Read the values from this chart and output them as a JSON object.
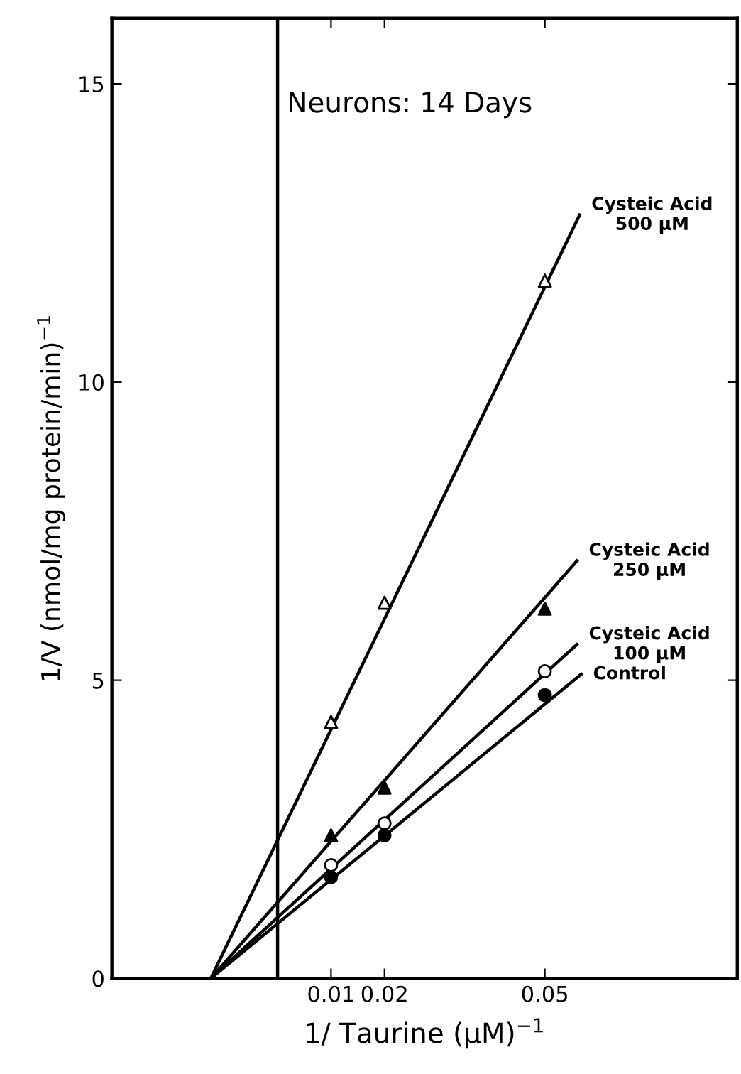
{
  "chart_data": {
    "type": "scatter",
    "title": "Neurons: 14 Days",
    "xlabel": "1/ Taurine (μM)$^{−1}$",
    "ylabel": "1/V (nmol/mg protein/min)$^{−1}$",
    "xlim": [
      -0.031,
      0.086
    ],
    "ylim": [
      0,
      16.1
    ],
    "xticks": [
      0.01,
      0.02,
      0.05
    ],
    "yticks": [
      0,
      5,
      10,
      15
    ],
    "grid": false,
    "legend": false,
    "ref_lines": [
      {
        "axis": "x",
        "value": 0,
        "color": "#000000"
      }
    ],
    "series": [
      {
        "type": "line",
        "x": [
          -0.0125,
          0.0565
        ],
        "values": [
          0,
          12.8
        ],
        "color": "#000000",
        "marker": "none"
      },
      {
        "type": "line",
        "x": [
          -0.0125,
          0.056
        ],
        "values": [
          0,
          7.0
        ],
        "color": "#000000",
        "marker": "none"
      },
      {
        "type": "line",
        "x": [
          -0.0125,
          0.056
        ],
        "values": [
          0,
          5.6
        ],
        "color": "#000000",
        "marker": "none"
      },
      {
        "type": "line",
        "x": [
          -0.0125,
          0.0568
        ],
        "values": [
          0,
          5.1
        ],
        "color": "#000000",
        "marker": "none"
      },
      {
        "x": [
          0.01,
          0.02,
          0.05
        ],
        "values": [
          4.3,
          6.3,
          11.7
        ],
        "color": "#ffffff",
        "marker": "triangle"
      },
      {
        "x": [
          0.01,
          0.02,
          0.05
        ],
        "values": [
          2.4,
          3.2,
          6.2
        ],
        "color": "#000000",
        "marker": "triangle"
      },
      {
        "x": [
          0.01,
          0.02,
          0.05
        ],
        "values": [
          1.9,
          2.6,
          5.15
        ],
        "color": "#ffffff",
        "marker": "circle"
      },
      {
        "x": [
          0.01,
          0.02,
          0.05
        ],
        "values": [
          1.7,
          2.4,
          4.75
        ],
        "color": "#000000",
        "marker": "circle"
      }
    ],
    "annotations": [
      {
        "text": "Cysteic Acid\n500 μM",
        "x": 0.0565,
        "y": 12.8
      },
      {
        "text": "Cysteic Acid\n250 μM",
        "x": 0.056,
        "y": 7.0
      },
      {
        "text": "Cysteic Acid\n100 μM",
        "x": 0.056,
        "y": 5.6
      },
      {
        "text": "Control",
        "x": 0.0568,
        "y": 5.1
      }
    ]
  }
}
